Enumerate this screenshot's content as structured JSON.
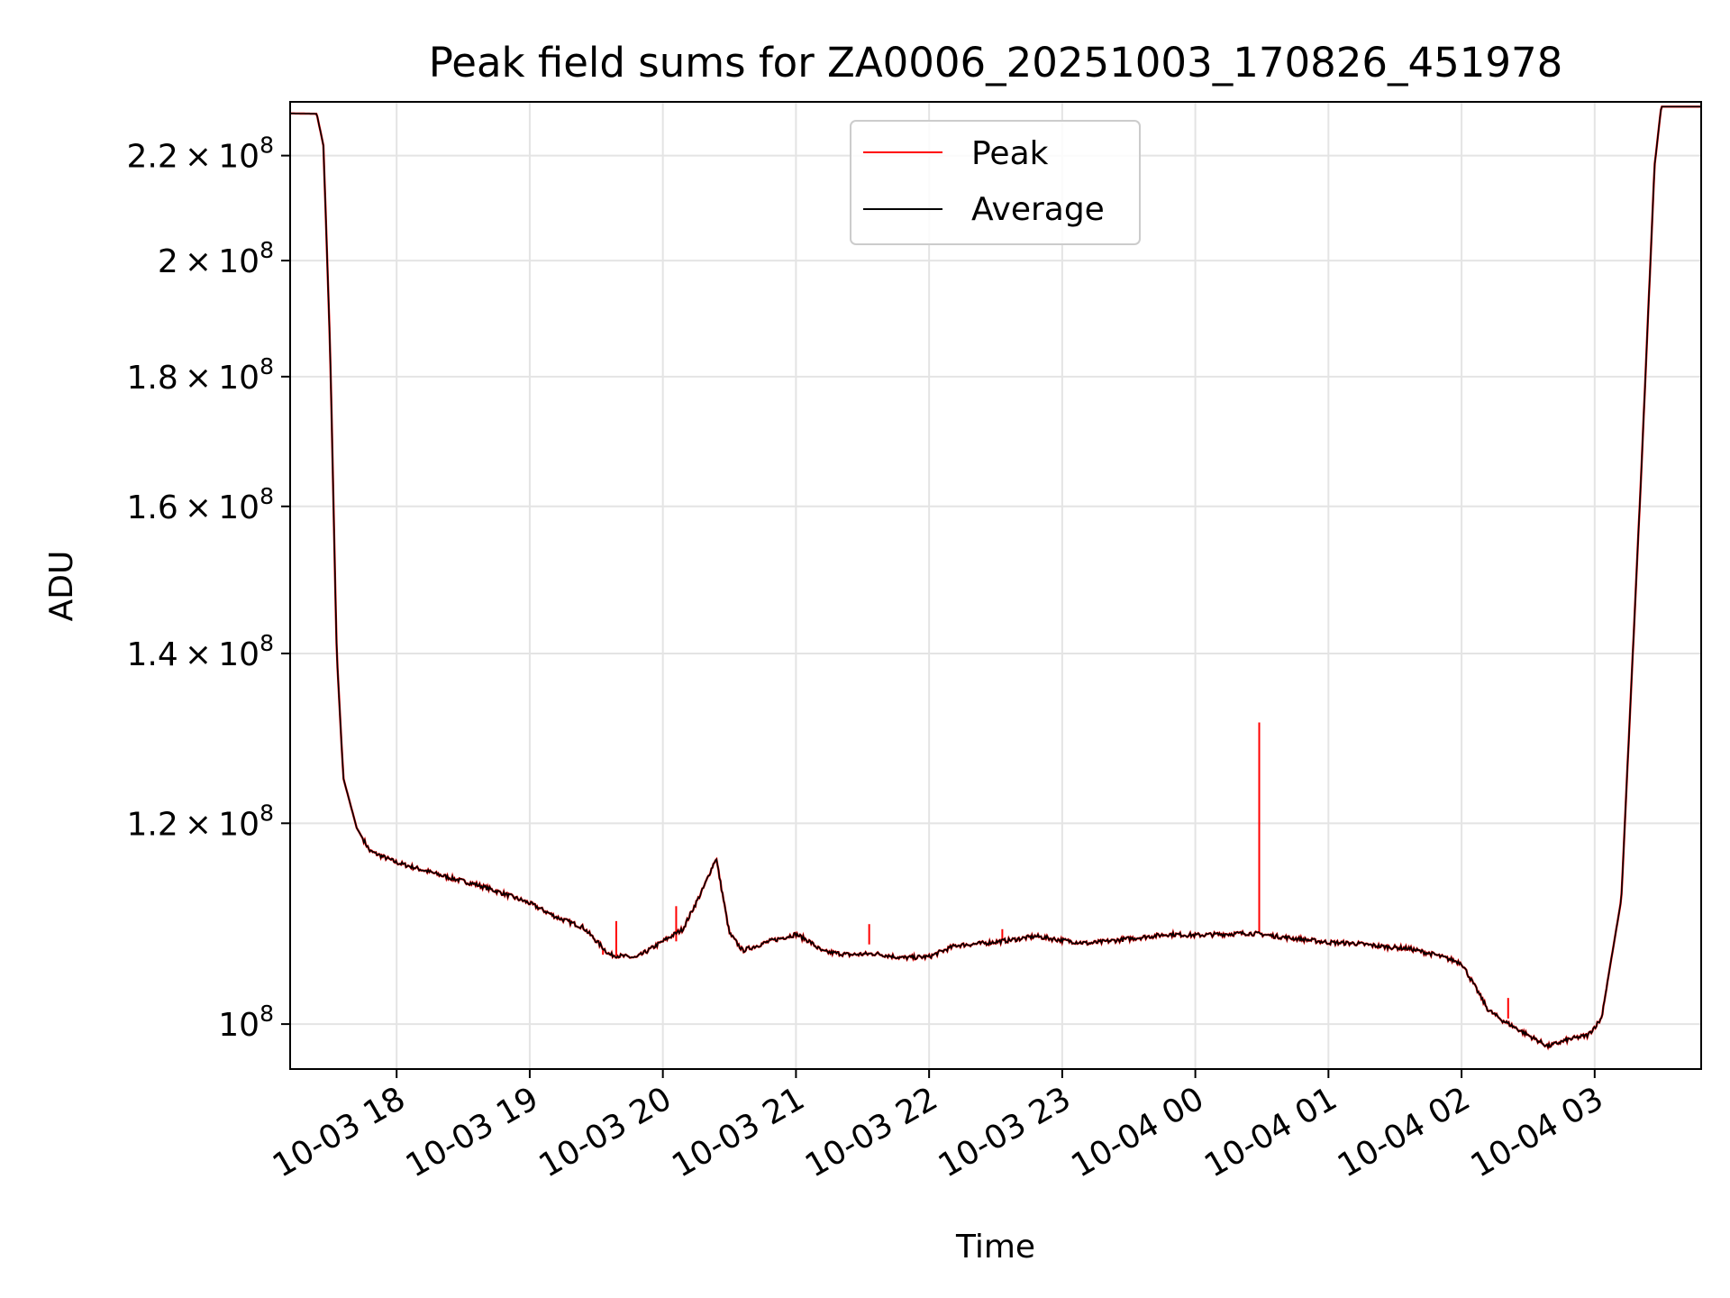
{
  "chart_data": {
    "type": "line",
    "title": "Peak field sums for ZA0006_20251003_170826_451978",
    "xlabel": "Time",
    "ylabel": "ADU",
    "y_scale": "log",
    "ylim": [
      96000000,
      231000000
    ],
    "xlim": [
      17.2,
      27.8
    ],
    "grid": true,
    "legend": {
      "placement": "top-center",
      "entries": [
        "Peak",
        "Average"
      ]
    },
    "x_ticks": [
      {
        "value": 18,
        "label": "10-03 18"
      },
      {
        "value": 19,
        "label": "10-03 19"
      },
      {
        "value": 20,
        "label": "10-03 20"
      },
      {
        "value": 21,
        "label": "10-03 21"
      },
      {
        "value": 22,
        "label": "10-03 22"
      },
      {
        "value": 23,
        "label": "10-03 23"
      },
      {
        "value": 24,
        "label": "10-04 00"
      },
      {
        "value": 25,
        "label": "10-04 01"
      },
      {
        "value": 26,
        "label": "10-04 02"
      },
      {
        "value": 27,
        "label": "10-04 03"
      }
    ],
    "y_ticks": [
      {
        "value": 100000000,
        "mantissa": "",
        "exp": "8"
      },
      {
        "value": 120000000,
        "mantissa": "1.2",
        "exp": "8"
      },
      {
        "value": 140000000,
        "mantissa": "1.4",
        "exp": "8"
      },
      {
        "value": 160000000,
        "mantissa": "1.6",
        "exp": "8"
      },
      {
        "value": 180000000,
        "mantissa": "1.8",
        "exp": "8"
      },
      {
        "value": 200000000,
        "mantissa": "2",
        "exp": "8"
      },
      {
        "value": 220000000,
        "mantissa": "2.2",
        "exp": "8"
      }
    ],
    "series": [
      {
        "name": "Average",
        "color": "#000000",
        "x": [
          17.2,
          17.4,
          17.45,
          17.5,
          17.55,
          17.6,
          17.7,
          17.8,
          18.0,
          18.2,
          18.4,
          18.6,
          18.8,
          19.0,
          19.2,
          19.4,
          19.6,
          19.8,
          20.0,
          20.15,
          20.3,
          20.4,
          20.5,
          20.6,
          20.8,
          21.0,
          21.1,
          21.2,
          21.4,
          21.6,
          21.8,
          22.0,
          22.2,
          22.4,
          22.6,
          22.8,
          23.0,
          23.2,
          23.4,
          23.6,
          23.8,
          24.0,
          24.2,
          24.4,
          24.5,
          24.6,
          24.8,
          25.0,
          25.2,
          25.4,
          25.6,
          25.8,
          26.0,
          26.2,
          26.3,
          26.5,
          26.65,
          26.8,
          26.95,
          27.05,
          27.2,
          27.35,
          27.45,
          27.5,
          27.8
        ],
        "y": [
          228600000,
          228500000,
          222000000,
          185000000,
          140000000,
          125000000,
          119500000,
          117000000,
          115800000,
          115000000,
          114200000,
          113500000,
          112600000,
          111600000,
          110200000,
          109200000,
          106500000,
          106200000,
          107800000,
          109000000,
          113000000,
          116300000,
          108600000,
          106900000,
          107800000,
          108500000,
          107800000,
          106800000,
          106500000,
          106600000,
          106200000,
          106300000,
          107400000,
          107600000,
          107900000,
          108300000,
          107900000,
          107600000,
          107900000,
          108200000,
          108500000,
          108400000,
          108500000,
          108600000,
          108500000,
          108300000,
          108000000,
          107700000,
          107600000,
          107300000,
          107100000,
          106500000,
          105700000,
          101300000,
          100400000,
          99000000,
          98000000,
          98600000,
          99000000,
          100500000,
          112000000,
          165000000,
          218000000,
          230000000,
          230000000
        ]
      },
      {
        "name": "Peak",
        "color": "#ff0000",
        "spikes": [
          {
            "x": 19.55,
            "peak": 107000000,
            "base": 106500000
          },
          {
            "x": 19.65,
            "peak": 109800000,
            "base": 106400000
          },
          {
            "x": 20.1,
            "peak": 111300000,
            "base": 107800000
          },
          {
            "x": 21.55,
            "peak": 109500000,
            "base": 107500000
          },
          {
            "x": 22.55,
            "peak": 109000000,
            "base": 107900000
          },
          {
            "x": 24.48,
            "peak": 131500000,
            "base": 108600000
          },
          {
            "x": 26.35,
            "peak": 102400000,
            "base": 100500000
          }
        ]
      }
    ]
  }
}
